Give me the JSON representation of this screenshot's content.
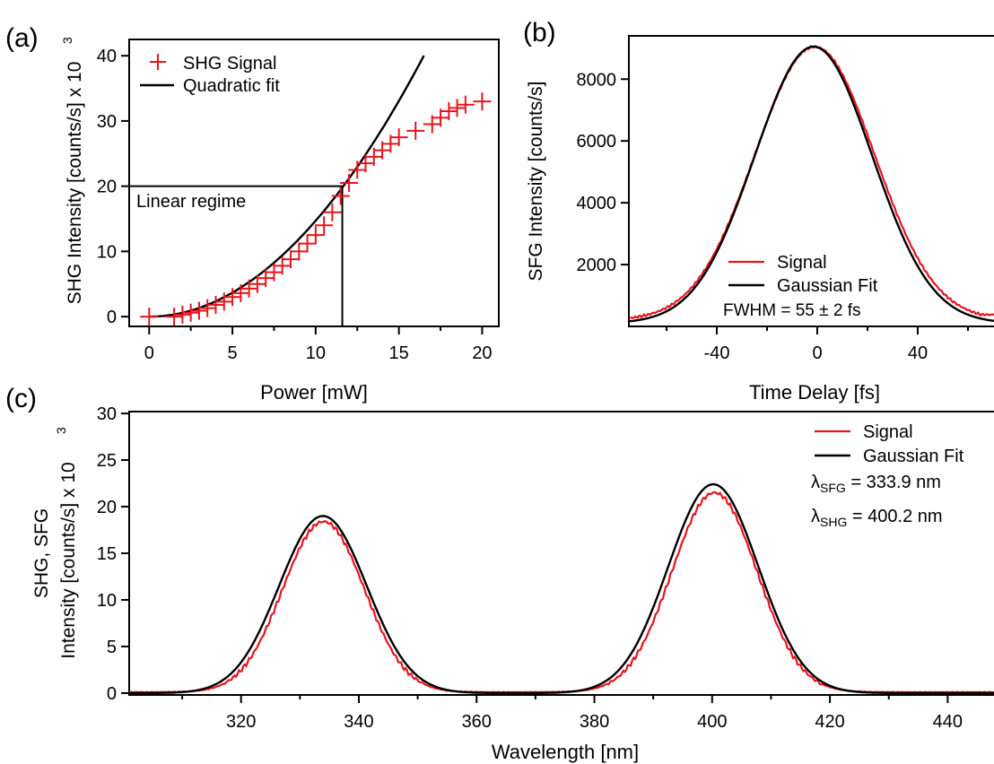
{
  "chart_data": [
    {
      "panel_label": "(a)",
      "type": "scatter",
      "xlabel": "Power [mW]",
      "ylabel": "SHG Intensity [counts/s] x 10",
      "ylabel_exp": "3",
      "xlim": [
        -1.2,
        21
      ],
      "ylim": [
        -1.5,
        42.5
      ],
      "xticks": [
        0,
        5,
        10,
        15,
        20
      ],
      "yticks": [
        0,
        10,
        20,
        30,
        40
      ],
      "legend": [
        {
          "label": "SHG Signal",
          "marker": "plus",
          "color": "#e8141e"
        },
        {
          "label": "Quadratic fit",
          "marker": "line",
          "color": "#000000"
        }
      ],
      "annotation": "Linear regime",
      "threshold": {
        "x": 11.6,
        "y": 20
      },
      "series": [
        {
          "name": "SHG Signal",
          "x": [
            0,
            1.5,
            2.0,
            2.5,
            3.0,
            3.5,
            4.0,
            4.5,
            5.0,
            5.5,
            6.0,
            6.5,
            7.0,
            7.5,
            8.0,
            8.5,
            9.0,
            9.5,
            10.0,
            10.5,
            11.0,
            11.5,
            12.0,
            12.5,
            13.0,
            13.5,
            14.0,
            14.5,
            15.0,
            16.0,
            17.0,
            17.5,
            18.0,
            18.5,
            19.0,
            20.0
          ],
          "y": [
            0,
            0,
            0.3,
            0.6,
            0.9,
            1.3,
            1.8,
            2.3,
            3.0,
            3.6,
            4.3,
            5.0,
            5.9,
            6.8,
            7.8,
            8.8,
            10.0,
            11.2,
            12.5,
            14.0,
            16.0,
            18.5,
            20.5,
            22.5,
            23.5,
            24.5,
            25.5,
            26.5,
            27.5,
            28.5,
            29.5,
            30.5,
            31.5,
            32.0,
            32.5,
            33.0
          ]
        },
        {
          "name": "Quadratic fit",
          "fit": "quadratic",
          "x_start": 0,
          "x_end": 16.5,
          "coef": 0.147
        }
      ]
    },
    {
      "panel_label": "(b)",
      "type": "line",
      "xlabel": "Time Delay [fs]",
      "ylabel": "SFG Intensity [counts/s]",
      "xlim": [
        -75,
        75
      ],
      "ylim": [
        0,
        9400
      ],
      "xticks": [
        -40,
        0,
        40
      ],
      "yticks": [
        2000,
        4000,
        6000,
        8000
      ],
      "legend": [
        {
          "label": "Signal",
          "color": "#e8141e"
        },
        {
          "label": "Gaussian Fit",
          "color": "#000000"
        }
      ],
      "annotation": "FWHM = 55 ± 2 fs",
      "series": [
        {
          "name": "Signal",
          "model": "gaussian",
          "amplitude": 8850,
          "center": -1,
          "fwhm": 56,
          "offset": 200,
          "tail_right": 380
        },
        {
          "name": "Gaussian Fit",
          "model": "gaussian",
          "amplitude": 8950,
          "center": -1.5,
          "fwhm": 55,
          "offset": 100
        }
      ]
    },
    {
      "panel_label": "(c)",
      "type": "line",
      "xlabel": "Wavelength [nm]",
      "ylabel_line1": "SHG, SFG",
      "ylabel_line2": "Intensity [counts/s] x 10",
      "ylabel_exp": "3",
      "xlim": [
        301,
        450
      ],
      "ylim": [
        -0.2,
        30.2
      ],
      "xticks": [
        320,
        340,
        360,
        380,
        400,
        420,
        440
      ],
      "yticks": [
        0,
        5,
        10,
        15,
        20,
        25,
        30
      ],
      "legend": [
        {
          "label": "Signal",
          "color": "#e8141e"
        },
        {
          "label": "Gaussian Fit",
          "color": "#000000"
        }
      ],
      "annotations": [
        {
          "symbol": "λ",
          "sub": "SFG",
          "text": " = 333.9 nm"
        },
        {
          "symbol": "λ",
          "sub": "SHG",
          "text": " = 400.2 nm"
        }
      ],
      "series": [
        {
          "name": "Signal",
          "model": "double-gaussian",
          "peaks": [
            {
              "center": 334.0,
              "amplitude": 18.3,
              "fwhm": 16.3
            },
            {
              "center": 400.4,
              "amplitude": 21.4,
              "fwhm": 17.0
            }
          ],
          "offset": 0.1
        },
        {
          "name": "Gaussian Fit",
          "model": "double-gaussian",
          "peaks": [
            {
              "center": 333.9,
              "amplitude": 19.0,
              "fwhm": 17.5
            },
            {
              "center": 400.2,
              "amplitude": 22.4,
              "fwhm": 18.0
            }
          ],
          "offset": 0
        }
      ]
    }
  ]
}
